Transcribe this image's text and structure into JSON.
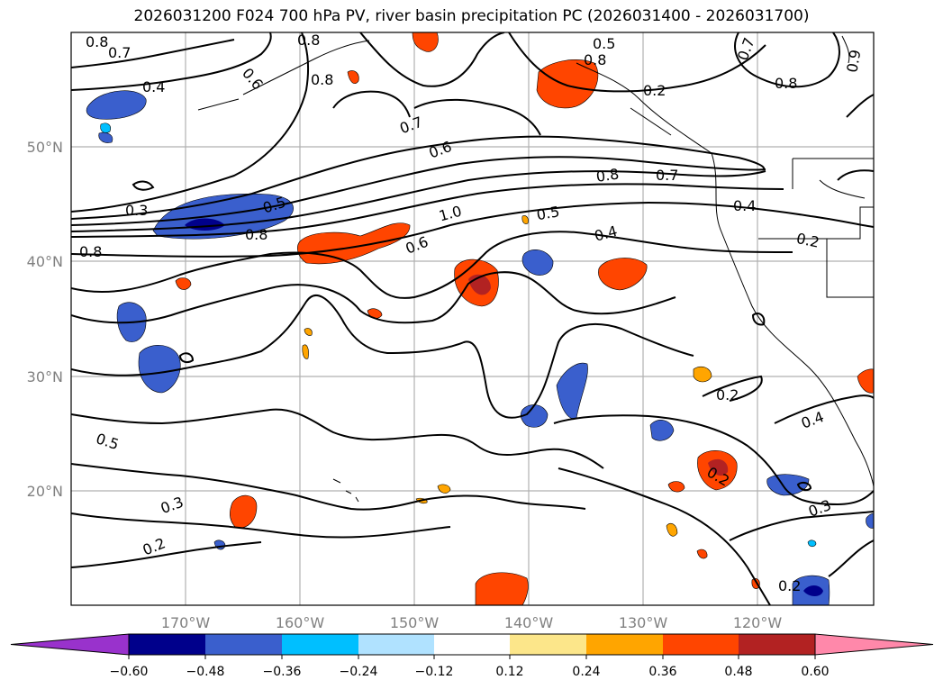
{
  "title": "2026031200 F024 700 hPa PV, river basin precipitation PC (2026031400 - 2026031700)",
  "map": {
    "lat_labels": [
      "50°N",
      "40°N",
      "30°N",
      "20°N"
    ],
    "lon_labels": [
      "170°W",
      "160°W",
      "150°W",
      "140°W",
      "130°W",
      "120°W"
    ],
    "contour_labels": [
      "0.8",
      "0.7",
      "0.8",
      "0.8",
      "0.6",
      "0.4",
      "0.8",
      "0.5",
      "0.2",
      "0.7",
      "0.8",
      "0.9",
      "0.7",
      "0.6",
      "0.3",
      "0.5",
      "0.8",
      "1.0",
      "0.8",
      "0.7",
      "0.4",
      "0.5",
      "0.6",
      "0.8",
      "0.4",
      "0.2",
      "0.2",
      "0.4",
      "0.5",
      "0.3",
      "0.2",
      "0.2",
      "0.3",
      "0.2"
    ]
  },
  "colorbar": {
    "colors": [
      "#9932cc",
      "#00008b",
      "#3a5fcd",
      "#00bfff",
      "#b0e2ff",
      "#ffffff",
      "#fce68a",
      "#ffa500",
      "#ff4500",
      "#b22222",
      "#ff88aa"
    ],
    "tick_labels": [
      "−0.60",
      "−0.48",
      "−0.36",
      "−0.24",
      "−0.12",
      "0.12",
      "0.24",
      "0.36",
      "0.48",
      "0.60"
    ]
  }
}
